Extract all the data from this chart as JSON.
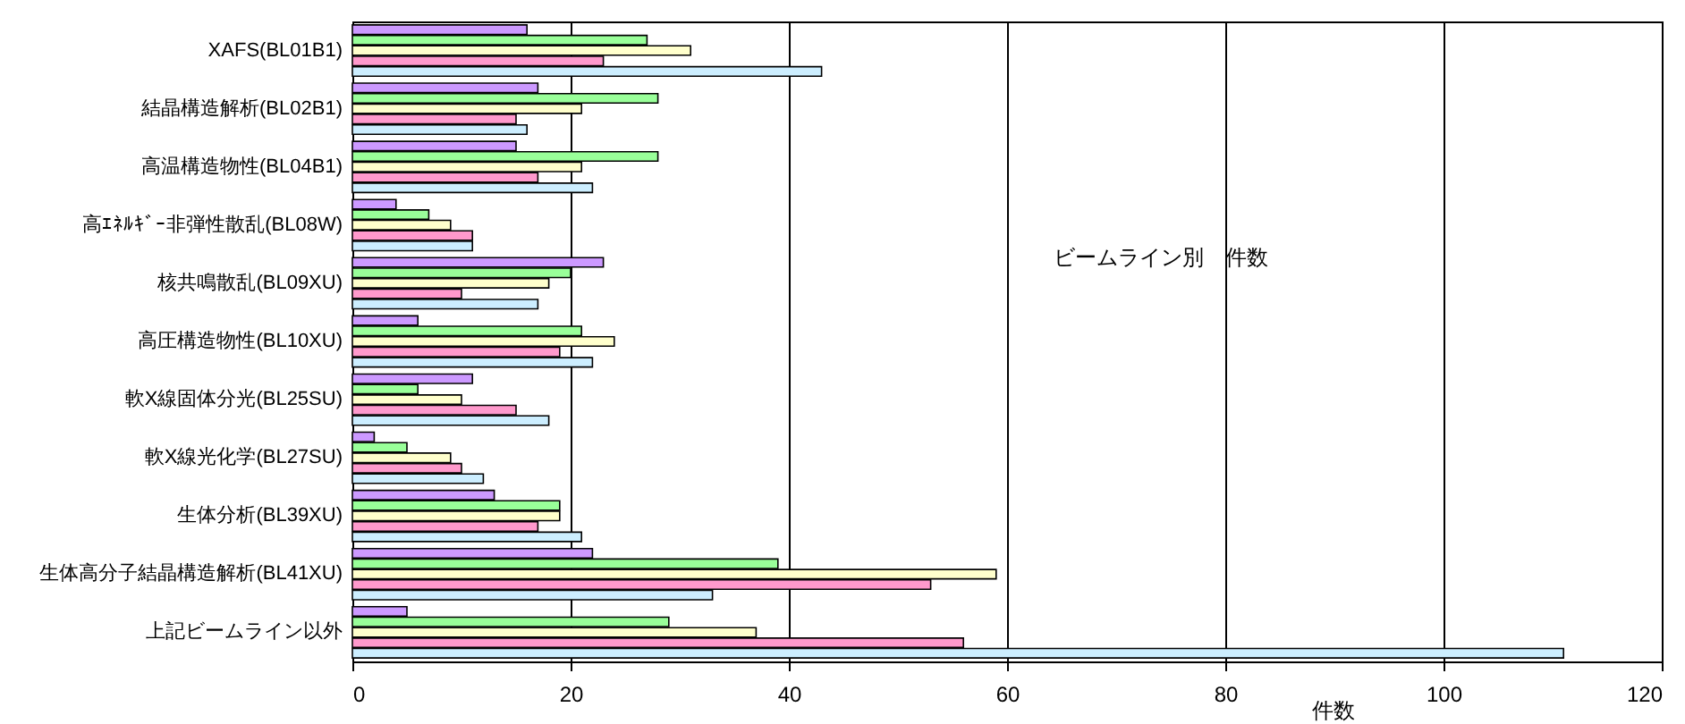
{
  "chart_data": {
    "type": "bar",
    "orientation": "horizontal",
    "title": "ビームライン別　件数",
    "xlabel": "件数",
    "categories": [
      "XAFS(BL01B1)",
      "結晶構造解析(BL02B1)",
      "高温構造物性(BL04B1)",
      "高ｴﾈﾙｷﾞｰ非弾性散乱(BL08W)",
      "核共鳴散乱(BL09XU)",
      "高圧構造物性(BL10XU)",
      "軟X線固体分光(BL25SU)",
      "軟X線光化学(BL27SU)",
      "生体分析(BL39XU)",
      "生体高分子結晶構造解析(BL41XU)",
      "上記ビームライン以外"
    ],
    "series": [
      {
        "color": "#cc99ff",
        "values": [
          16,
          17,
          15,
          4,
          23,
          6,
          11,
          2,
          13,
          22,
          5
        ]
      },
      {
        "color": "#99ff99",
        "values": [
          27,
          28,
          28,
          7,
          20,
          21,
          6,
          5,
          19,
          39,
          29
        ]
      },
      {
        "color": "#ffffcc",
        "values": [
          31,
          21,
          21,
          9,
          18,
          24,
          10,
          9,
          19,
          59,
          37
        ]
      },
      {
        "color": "#ff99cc",
        "values": [
          23,
          15,
          17,
          11,
          10,
          19,
          15,
          10,
          17,
          53,
          56
        ]
      },
      {
        "color": "#cceeff",
        "values": [
          43,
          16,
          22,
          11,
          17,
          22,
          18,
          12,
          21,
          33,
          111
        ]
      }
    ],
    "xlim": [
      0,
      120
    ],
    "xticks": [
      0,
      20,
      40,
      60,
      80,
      100,
      120
    ],
    "grid": "x"
  }
}
